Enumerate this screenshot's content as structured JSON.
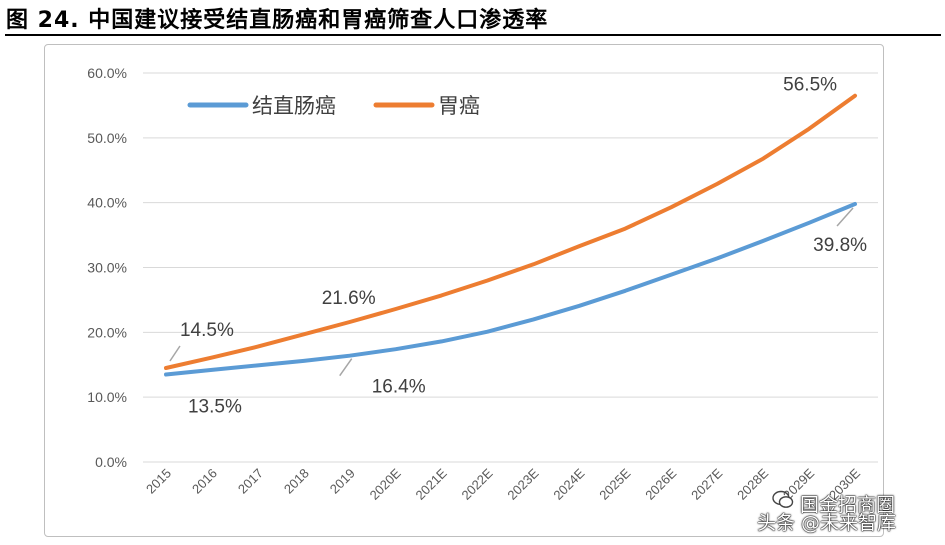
{
  "figure": {
    "title": "图 24. 中国建议接受结直肠癌和胃癌筛查人口渗透率"
  },
  "watermark": {
    "line1": "国金招商圈",
    "line2": "头条 @未来智库"
  },
  "chart_data": {
    "type": "line",
    "title": "",
    "xlabel": "",
    "ylabel": "",
    "ylim": [
      0,
      60
    ],
    "yticks": [
      "0.0%",
      "10.0%",
      "20.0%",
      "30.0%",
      "40.0%",
      "50.0%",
      "60.0%"
    ],
    "categories": [
      "2015",
      "2016",
      "2017",
      "2018",
      "2019",
      "2020E",
      "2021E",
      "2022E",
      "2023E",
      "2024E",
      "2025E",
      "2026E",
      "2027E",
      "2028E",
      "2029E",
      "2030E"
    ],
    "legend_position": "top-left",
    "grid": true,
    "series": [
      {
        "name": "结直肠癌",
        "color": "#5b9bd5",
        "values": [
          13.5,
          14.2,
          14.9,
          15.6,
          16.4,
          17.4,
          18.6,
          20.1,
          22.0,
          24.1,
          26.4,
          28.9,
          31.4,
          34.1,
          36.9,
          39.8
        ]
      },
      {
        "name": "胃癌",
        "color": "#ed7d31",
        "values": [
          14.5,
          16.1,
          17.8,
          19.7,
          21.6,
          23.6,
          25.7,
          28.0,
          30.5,
          33.3,
          36.0,
          39.3,
          42.9,
          46.8,
          51.4,
          56.5
        ]
      }
    ],
    "annotations": [
      {
        "series": 1,
        "index": 0,
        "text": "14.5%"
      },
      {
        "series": 0,
        "index": 0,
        "text": "13.5%"
      },
      {
        "series": 1,
        "index": 4,
        "text": "21.6%"
      },
      {
        "series": 0,
        "index": 4,
        "text": "16.4%"
      },
      {
        "series": 1,
        "index": 15,
        "text": "56.5%"
      },
      {
        "series": 0,
        "index": 15,
        "text": "39.8%"
      }
    ]
  }
}
